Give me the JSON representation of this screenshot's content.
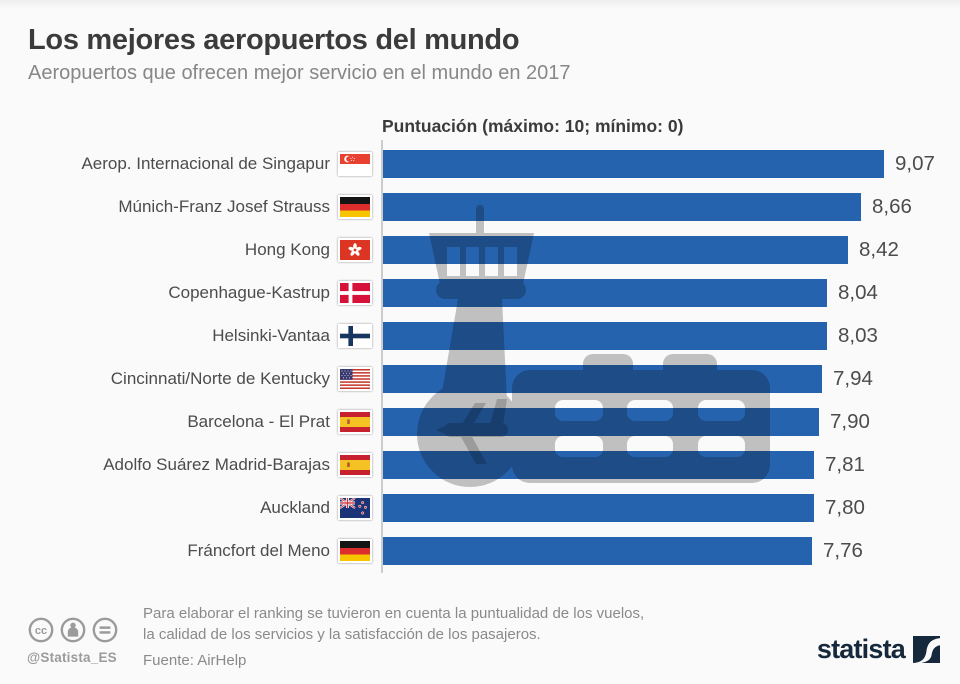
{
  "page": {
    "title": "Los mejores aeropuertos del mundo",
    "subtitle": "Aeropuertos que ofrecen mejor servicio en el mundo en 2017"
  },
  "chart_data": {
    "type": "bar",
    "orientation": "horizontal",
    "axis_title": "Puntuación (máximo: 10; mínimo: 0)",
    "xlim": [
      0,
      10
    ],
    "grid": false,
    "legend": false,
    "categories": [
      "Aerop. Internacional de Singapur",
      "Múnich-Franz Josef Strauss",
      "Hong Kong",
      "Copenhague-Kastrup",
      "Helsinki-Vantaa",
      "Cincinnati/Norte de Kentucky",
      "Barcelona - El Prat",
      "Adolfo Suárez Madrid-Barajas",
      "Auckland",
      "Fráncfort del Meno"
    ],
    "values": [
      9.07,
      8.66,
      8.42,
      8.04,
      8.03,
      7.94,
      7.9,
      7.81,
      7.8,
      7.76
    ],
    "value_labels": [
      "9,07",
      "8,66",
      "8,42",
      "8,04",
      "8,03",
      "7,94",
      "7,90",
      "7,81",
      "7,80",
      "7,76"
    ],
    "flags": [
      "sg",
      "de",
      "hk",
      "dk",
      "fi",
      "us",
      "es",
      "es",
      "nz",
      "de"
    ]
  },
  "footer": {
    "note": [
      "Para elaborar el ranking se tuvieron en cuenta la puntualidad de los vuelos,",
      "la calidad de los servicios y la satisfacción de los pasajeros."
    ],
    "source": "Fuente: AirHelp",
    "handle": "@Statista_ES",
    "license_icons": [
      "cc",
      "by",
      "nd"
    ],
    "brand": "statista"
  },
  "colors": {
    "bar": "#2563ae",
    "watermark_gray": "#c4c4c4",
    "watermark_dark": "#9e9e9e",
    "brand_navy": "#16293c"
  }
}
